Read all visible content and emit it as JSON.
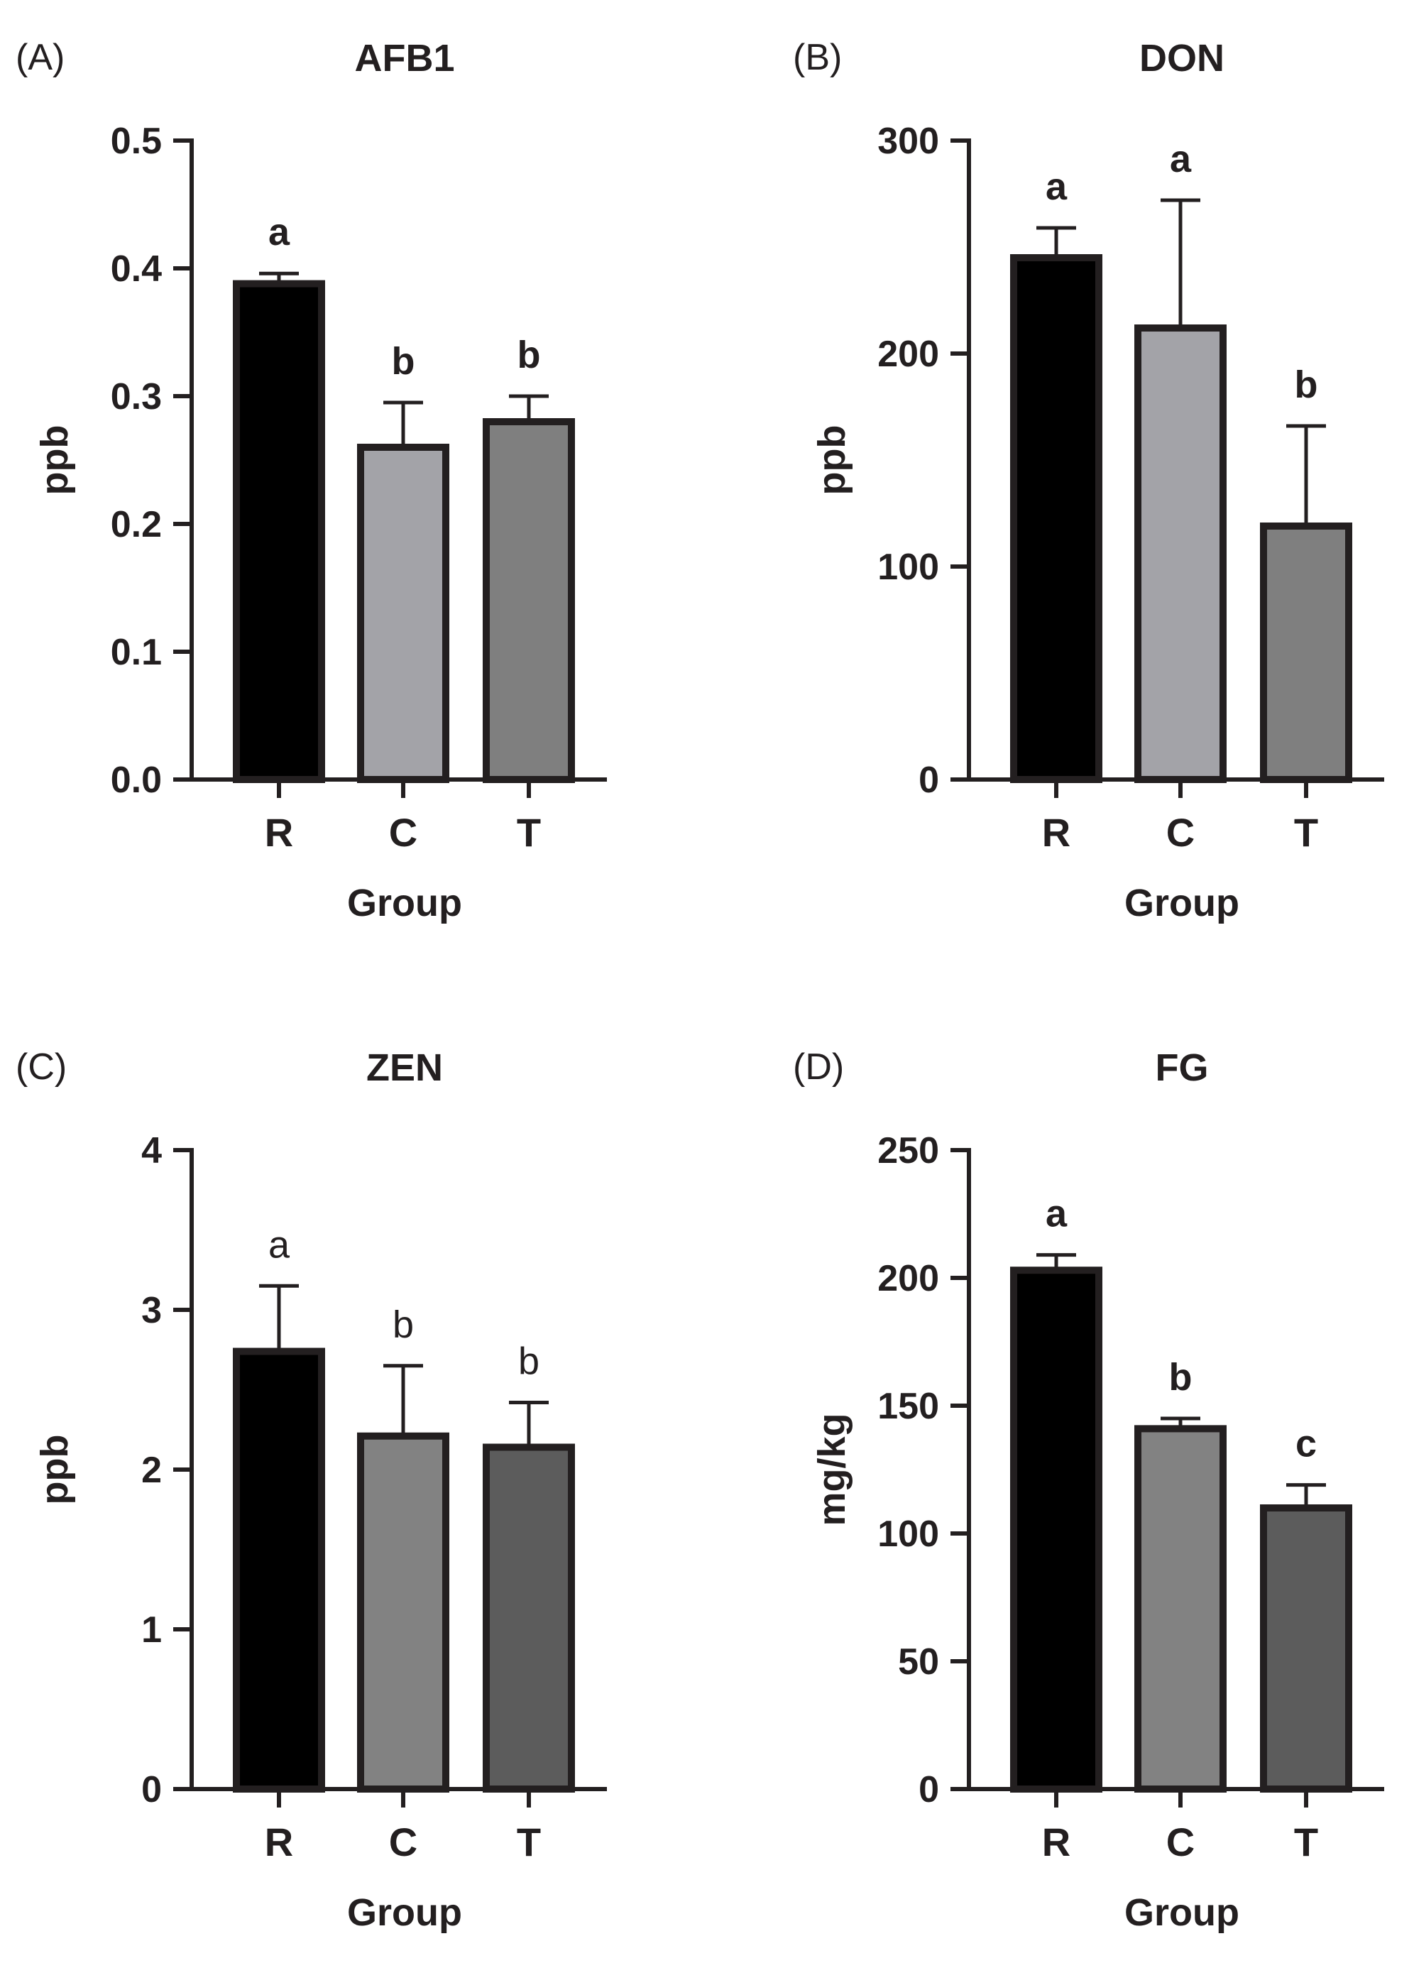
{
  "chart_data": [
    {
      "type": "bar",
      "panel_label": "(A)",
      "title": "AFB1",
      "xlabel": "Group",
      "ylabel": "ppb",
      "categories": [
        "R",
        "C",
        "T"
      ],
      "values": [
        0.388,
        0.26,
        0.28
      ],
      "errors": [
        0.008,
        0.035,
        0.02
      ],
      "significance": [
        "a",
        "b",
        "b"
      ],
      "significance_style": "bold",
      "bar_colors": [
        "#000000",
        "#a3a3a8",
        "#7f7f7f"
      ],
      "ylim": [
        0,
        0.5
      ],
      "yticks": [
        0.0,
        0.1,
        0.2,
        0.3,
        0.4,
        0.5
      ],
      "ytick_labels": [
        "0.0",
        "0.1",
        "0.2",
        "0.3",
        "0.4",
        "0.5"
      ]
    },
    {
      "type": "bar",
      "panel_label": "(B)",
      "title": "DON",
      "xlabel": "Group",
      "ylabel": "ppb",
      "categories": [
        "R",
        "C",
        "T"
      ],
      "values": [
        245,
        212,
        119
      ],
      "errors": [
        14,
        60,
        47
      ],
      "significance": [
        "a",
        "a",
        "b"
      ],
      "significance_style": "bold",
      "bar_colors": [
        "#000000",
        "#a3a3a8",
        "#7f7f7f"
      ],
      "ylim": [
        0,
        300
      ],
      "yticks": [
        0,
        100,
        200,
        300
      ],
      "ytick_labels": [
        "0",
        "100",
        "200",
        "300"
      ]
    },
    {
      "type": "bar",
      "panel_label": "(C)",
      "title": "ZEN",
      "xlabel": "Group",
      "ylabel": "ppb",
      "categories": [
        "R",
        "C",
        "T"
      ],
      "values": [
        2.74,
        2.21,
        2.14
      ],
      "errors": [
        0.41,
        0.44,
        0.28
      ],
      "significance": [
        "a",
        "b",
        "b"
      ],
      "significance_style": "normal",
      "bar_colors": [
        "#000000",
        "#828282",
        "#5c5c5c"
      ],
      "ylim": [
        0,
        4
      ],
      "yticks": [
        0,
        1,
        2,
        3,
        4
      ],
      "ytick_labels": [
        "0",
        "1",
        "2",
        "3",
        "4"
      ]
    },
    {
      "type": "bar",
      "panel_label": "(D)",
      "title": "FG",
      "xlabel": "Group",
      "ylabel": "mg/kg",
      "categories": [
        "R",
        "C",
        "T"
      ],
      "values": [
        203,
        141,
        110
      ],
      "errors": [
        6,
        4,
        9
      ],
      "significance": [
        "a",
        "b",
        "c"
      ],
      "significance_style": "bold",
      "bar_colors": [
        "#000000",
        "#828282",
        "#5c5c5c"
      ],
      "ylim": [
        0,
        250
      ],
      "yticks": [
        0,
        50,
        100,
        150,
        200,
        250
      ],
      "ytick_labels": [
        "0",
        "50",
        "100",
        "150",
        "200",
        "250"
      ]
    }
  ]
}
